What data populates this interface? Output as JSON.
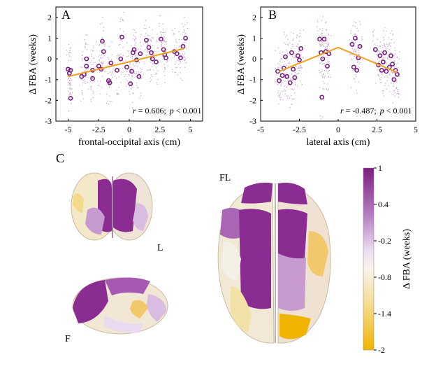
{
  "panels": {
    "A": {
      "label": "A",
      "stat_r": "r",
      "stat_r_val": " = 0.606;",
      "stat_p": "p",
      "stat_p_val": " < 0.001"
    },
    "B": {
      "label": "B",
      "stat_r": "r",
      "stat_r_val": " = -0.487;",
      "stat_p": "p",
      "stat_p_val": " < 0.001"
    },
    "C": {
      "label": "C"
    }
  },
  "brain_views": {
    "top": "L",
    "side": "F",
    "large": "FL"
  },
  "colorbar": {
    "title": "Δ FBA (weeks)",
    "ticks": [
      "1",
      "0.4",
      "-0.2",
      "-0.8",
      "-1.4",
      "-2"
    ],
    "colors": {
      "high": "#7b1e82",
      "mid": "#f7f3ee",
      "low": "#f0b400"
    }
  },
  "colors": {
    "points": "#7b1e82",
    "fit": "#f0a020"
  },
  "chart_data": [
    {
      "type": "scatter",
      "title": "",
      "xlabel": "frontal-occipital axis (cm)",
      "ylabel": "Δ FBA (weeks)",
      "xlim": [
        -6,
        6
      ],
      "ylim": [
        -3,
        2.5
      ],
      "xticks": [
        "-5",
        "-2.5",
        "0",
        "2.5",
        "5"
      ],
      "yticks": [
        "2",
        "1",
        "0",
        "-1",
        "-2",
        "-3"
      ],
      "series": [
        {
          "values": [
            [
              -5.0,
              -0.5
            ],
            [
              -4.9,
              -0.7
            ],
            [
              -4.8,
              -0.55
            ],
            [
              -4.8,
              -1.9
            ],
            [
              -3.9,
              -0.85
            ],
            [
              -3.7,
              -0.75
            ],
            [
              -3.5,
              0.0
            ],
            [
              -3.5,
              -0.35
            ],
            [
              -3.0,
              -0.55
            ],
            [
              -3.0,
              -0.95
            ],
            [
              -2.5,
              -0.35
            ],
            [
              -2.3,
              -0.5
            ],
            [
              -2.2,
              0.85
            ],
            [
              -2.1,
              0.35
            ],
            [
              -1.7,
              -1.05
            ],
            [
              -1.6,
              -1.15
            ],
            [
              -1.5,
              -0.2
            ],
            [
              -1.0,
              -0.55
            ],
            [
              -0.7,
              0.0
            ],
            [
              -0.6,
              1.05
            ],
            [
              -0.2,
              -0.4
            ],
            [
              0.1,
              -1.2
            ],
            [
              0.2,
              -0.6
            ],
            [
              0.3,
              0.3
            ],
            [
              0.4,
              0.45
            ],
            [
              0.6,
              -0.05
            ],
            [
              0.8,
              -0.85
            ],
            [
              0.9,
              0.25
            ],
            [
              1.4,
              0.9
            ],
            [
              1.6,
              0.55
            ],
            [
              1.8,
              0.3
            ],
            [
              1.9,
              0.0
            ],
            [
              2.2,
              -0.15
            ],
            [
              2.6,
              0.95
            ],
            [
              2.8,
              0.45
            ],
            [
              2.9,
              0.2
            ],
            [
              3.0,
              0.05
            ],
            [
              3.7,
              0.35
            ],
            [
              3.9,
              0.25
            ],
            [
              4.2,
              0.05
            ],
            [
              4.4,
              0.6
            ],
            [
              4.6,
              1.0
            ]
          ]
        },
        {
          "values": [
            [
              -5.0,
              -0.85
            ],
            [
              4.5,
              0.5
            ]
          ]
        }
      ],
      "stat_text": "r = 0.606;  p < 0.001"
    },
    {
      "type": "scatter",
      "title": "",
      "xlabel": "lateral axis (cm)",
      "ylabel": "Δ FBA (weeks)",
      "xlim": [
        -5,
        5
      ],
      "ylim": [
        -3,
        2.5
      ],
      "xticks": [
        "-5",
        "-2.5",
        "0",
        "2.5",
        "5"
      ],
      "yticks": [
        "2",
        "1",
        "0",
        "-1",
        "-2",
        "-3"
      ],
      "series": [
        {
          "values": [
            [
              -3.9,
              -0.6
            ],
            [
              -3.8,
              -1.05
            ],
            [
              -3.6,
              -0.8
            ],
            [
              -3.5,
              -0.45
            ],
            [
              -3.4,
              0.1
            ],
            [
              -3.3,
              -0.85
            ],
            [
              -3.1,
              -1.15
            ],
            [
              -3.0,
              0.3
            ],
            [
              -2.9,
              -0.5
            ],
            [
              -2.8,
              -0.9
            ],
            [
              -2.6,
              0.15
            ],
            [
              -2.5,
              -0.05
            ],
            [
              -2.4,
              0.5
            ],
            [
              -1.2,
              0.95
            ],
            [
              -1.1,
              0.3
            ],
            [
              -1.05,
              -1.85
            ],
            [
              -1.0,
              0.0
            ],
            [
              -0.9,
              0.95
            ],
            [
              -0.8,
              0.35
            ],
            [
              -0.7,
              -0.35
            ],
            [
              -0.6,
              0.25
            ],
            [
              0.9,
              0.7
            ],
            [
              1.0,
              -0.4
            ],
            [
              1.1,
              1.0
            ],
            [
              1.2,
              -0.55
            ],
            [
              1.3,
              0.05
            ],
            [
              1.4,
              0.6
            ],
            [
              2.4,
              0.45
            ],
            [
              2.6,
              -0.3
            ],
            [
              2.7,
              0.15
            ],
            [
              2.8,
              -0.55
            ],
            [
              2.9,
              -0.15
            ],
            [
              3.0,
              0.3
            ],
            [
              3.1,
              -0.6
            ],
            [
              3.3,
              -0.4
            ],
            [
              3.4,
              0.15
            ],
            [
              3.5,
              -0.25
            ],
            [
              3.6,
              -1.0
            ],
            [
              3.7,
              -0.55
            ],
            [
              3.8,
              -0.75
            ]
          ]
        },
        {
          "values": [
            [
              -3.8,
              -0.6
            ],
            [
              0.0,
              0.55
            ],
            [
              3.8,
              -0.65
            ]
          ]
        }
      ],
      "stat_text": "r = -0.487;  p < 0.001"
    }
  ]
}
